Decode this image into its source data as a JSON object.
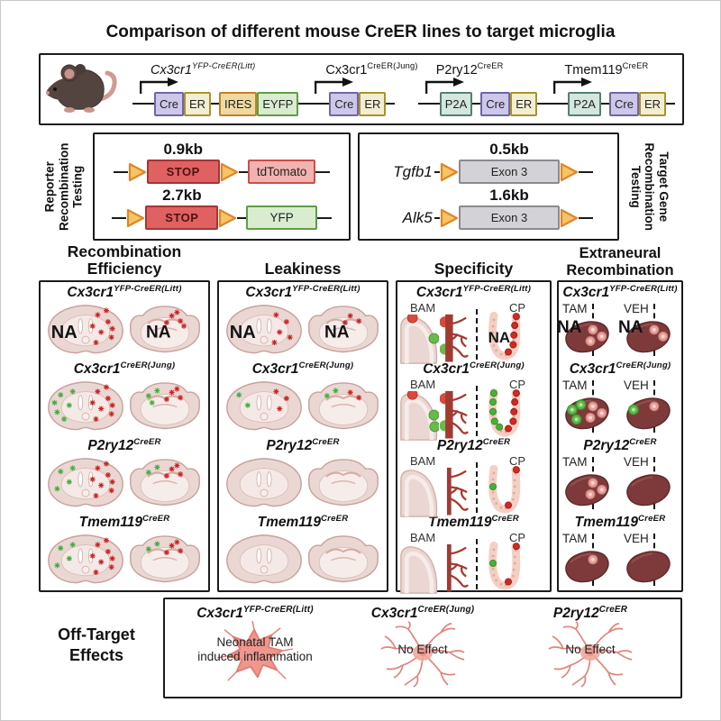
{
  "title": "Comparison of different mouse CreER lines to target microglia",
  "labels": {
    "na": "NA",
    "bam": "BAM",
    "cp": "CP",
    "tam": "TAM",
    "veh": "VEH"
  },
  "colors": {
    "loxp-fill": "#f6c464",
    "loxp-stroke": "#e0862a",
    "stop-fill": "#e06161",
    "stop-stroke": "#a83434",
    "tdtomato-fill": "#f2b3b0",
    "tdtomato-stroke": "#cc4f4a",
    "yfp-fill": "#d9ecd0",
    "yfp-stroke": "#5f9e45",
    "exon-fill": "#d3d3d7",
    "exon-stroke": "#8a8a92",
    "cre-fill": "#cdc7e9",
    "cre-stroke": "#6f66a8",
    "er-fill": "#f2eed2",
    "er-stroke": "#a8922a",
    "ires-fill": "#eeda9f",
    "ires-stroke": "#c37f2b",
    "p2a-fill": "#d5e6de",
    "p2a-stroke": "#53806d",
    "red-signal": "#c92222",
    "green-signal": "#3fae3f",
    "brain-fill": "#ead7d3",
    "spleen-fill": "#7e3a3a",
    "vessel": "#a23a32",
    "microglia": "#ef9288"
  },
  "construct_panel": {
    "constructs": [
      {
        "gene": "Cx3cr1",
        "sup": "YFP-CreER(Litt)",
        "italic": true,
        "boxes": [
          {
            "label": "Cre",
            "type": "cre"
          },
          {
            "label": "ER",
            "type": "er"
          },
          {
            "label": "IRES",
            "type": "ires",
            "gap": true
          },
          {
            "label": "EYFP",
            "type": "eyfp"
          }
        ]
      },
      {
        "gene": "Cx3cr1",
        "sup": "CreER(Jung)",
        "italic": false,
        "boxes": [
          {
            "label": "Cre",
            "type": "cre"
          },
          {
            "label": "ER",
            "type": "er"
          }
        ]
      },
      {
        "gene": "P2ry12",
        "sup": "CreER",
        "italic": false,
        "boxes": [
          {
            "label": "P2A",
            "type": "p2a"
          },
          {
            "label": "Cre",
            "type": "cre",
            "gap": true
          },
          {
            "label": "ER",
            "type": "er"
          }
        ]
      },
      {
        "gene": "Tmem119",
        "sup": "CreER",
        "italic": false,
        "boxes": [
          {
            "label": "P2A",
            "type": "p2a"
          },
          {
            "label": "Cre",
            "type": "cre",
            "gap": true
          },
          {
            "label": "ER",
            "type": "er"
          }
        ]
      }
    ]
  },
  "reporter_panel": {
    "side_label": "Reporter\nRecombination\nTesting",
    "rows": [
      {
        "size": "0.9kb",
        "cassette": "STOP",
        "reporter": "tdTomato",
        "reporter_type": "tdtomato"
      },
      {
        "size": "2.7kb",
        "cassette": "STOP",
        "reporter": "YFP",
        "reporter_type": "yfp"
      }
    ]
  },
  "target_panel": {
    "side_label": "Target Gene\nRecombination\nTesting",
    "rows": [
      {
        "gene": "Tgfb1",
        "size": "0.5kb",
        "exon": "Exon 3"
      },
      {
        "gene": "Alk5",
        "size": "1.6kb",
        "exon": "Exon 3"
      }
    ]
  },
  "columns": [
    {
      "header": "Recombination\nEfficiency",
      "type": "brains",
      "rows": [
        {
          "gene": "Cx3cr1",
          "sup": "YFP-CreER(Litt)",
          "left": {
            "na": true,
            "red": 8,
            "green": 0
          },
          "right": {
            "na": true,
            "red": 5,
            "green": 0
          }
        },
        {
          "gene": "Cx3cr1",
          "sup": "CreER(Jung)",
          "left": {
            "red": 8,
            "green": 6
          },
          "right": {
            "red": 4,
            "green": 3
          }
        },
        {
          "gene": "P2ry12",
          "sup": "CreER",
          "left": {
            "red": 8,
            "green": 4
          },
          "right": {
            "red": 4,
            "green": 2
          }
        },
        {
          "gene": "Tmem119",
          "sup": "CreER",
          "left": {
            "red": 8,
            "green": 4
          },
          "right": {
            "red": 4,
            "green": 2
          }
        }
      ]
    },
    {
      "header": "Leakiness",
      "type": "brains",
      "rows": [
        {
          "gene": "Cx3cr1",
          "sup": "YFP-CreER(Litt)",
          "left": {
            "na": true,
            "red": 5,
            "green": 0
          },
          "right": {
            "na": true,
            "red": 3,
            "green": 0
          }
        },
        {
          "gene": "Cx3cr1",
          "sup": "CreER(Jung)",
          "left": {
            "red": 3,
            "green": 2
          },
          "right": {
            "red": 2,
            "green": 2
          }
        },
        {
          "gene": "P2ry12",
          "sup": "CreER",
          "left": {
            "red": 0,
            "green": 0
          },
          "right": {
            "red": 0,
            "green": 0
          }
        },
        {
          "gene": "Tmem119",
          "sup": "CreER",
          "left": {
            "red": 0,
            "green": 0
          },
          "right": {
            "red": 0,
            "green": 0
          }
        }
      ]
    },
    {
      "header": "Specificity",
      "type": "specificity",
      "rows": [
        {
          "gene": "Cx3cr1",
          "sup": "YFP-CreER(Litt)",
          "bam": {
            "red": 1,
            "green": 1
          },
          "vessel": "decorated",
          "cp": {
            "red": 5,
            "green": 0,
            "na": true
          }
        },
        {
          "gene": "Cx3cr1",
          "sup": "CreER(Jung)",
          "bam": {
            "red": 1,
            "green": 2
          },
          "vessel": "decorated",
          "cp": {
            "red": 5,
            "green": 5
          }
        },
        {
          "gene": "P2ry12",
          "sup": "CreER",
          "bam": {
            "red": 0,
            "green": 0
          },
          "vessel": "plain",
          "cp": {
            "red": 2,
            "green": 1
          }
        },
        {
          "gene": "Tmem119",
          "sup": "CreER",
          "bam": {
            "red": 0,
            "green": 0
          },
          "vessel": "plain",
          "cp": {
            "red": 2,
            "green": 1
          }
        }
      ]
    },
    {
      "header": "Extraneural\nRecombination",
      "type": "organs",
      "rows": [
        {
          "gene": "Cx3cr1",
          "sup": "YFP-CreER(Litt)",
          "tam": {
            "na": true,
            "pink": 3,
            "green": 0
          },
          "veh": {
            "na": true,
            "pink": 2,
            "green": 0
          }
        },
        {
          "gene": "Cx3cr1",
          "sup": "CreER(Jung)",
          "tam": {
            "pink": 3,
            "green": 3
          },
          "veh": {
            "pink": 1,
            "green": 1
          }
        },
        {
          "gene": "P2ry12",
          "sup": "CreER",
          "tam": {
            "pink": 3,
            "green": 0
          },
          "veh": {
            "pink": 0,
            "green": 0
          }
        },
        {
          "gene": "Tmem119",
          "sup": "CreER",
          "tam": {
            "pink": 1,
            "green": 0
          },
          "veh": {
            "pink": 0,
            "green": 0
          }
        }
      ]
    }
  ],
  "off_target": {
    "label": "Off-Target\nEffects",
    "entries": [
      {
        "gene": "Cx3cr1",
        "sup": "YFP-CreER(Litt)",
        "caption": "Neonatal TAM\ninduced inflammation",
        "morphology": "amoeboid"
      },
      {
        "gene": "Cx3cr1",
        "sup": "CreER(Jung)",
        "caption": "No Effect",
        "morphology": "ramified"
      },
      {
        "gene": "P2ry12",
        "sup": "CreER",
        "caption": "No Effect",
        "morphology": "ramified"
      }
    ]
  }
}
